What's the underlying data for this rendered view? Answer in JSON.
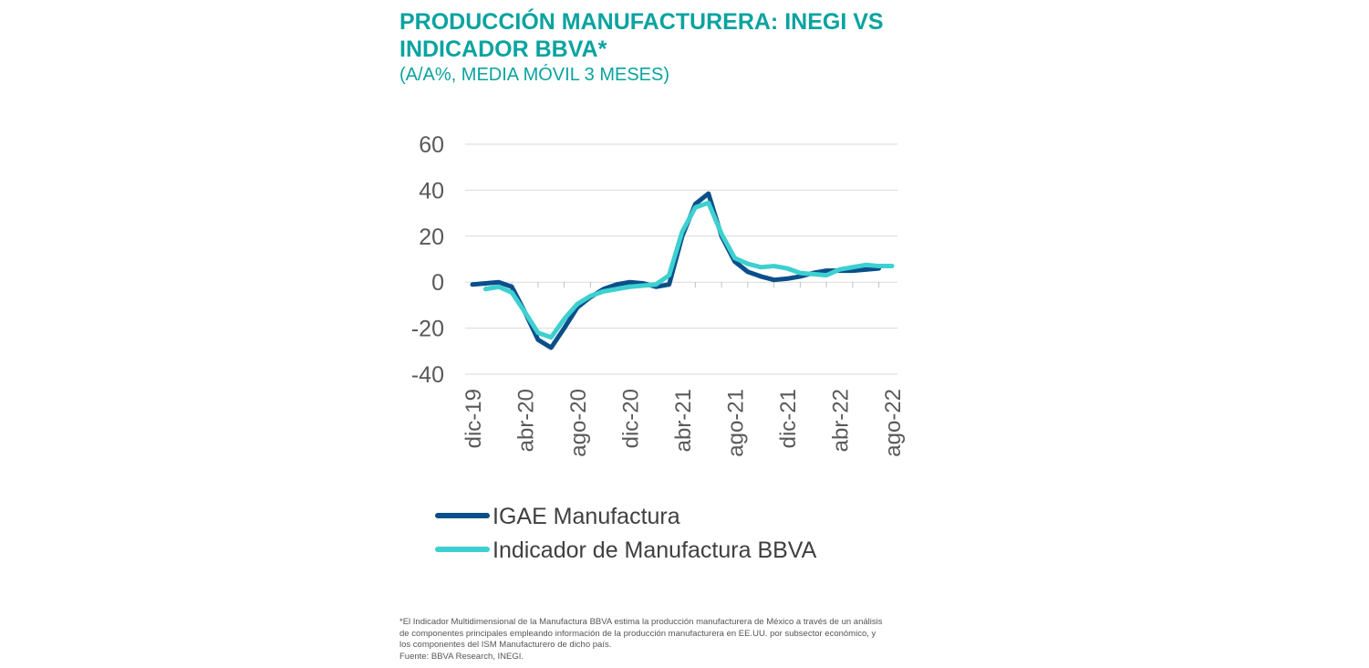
{
  "title": "PRODUCCIÓN MANUFACTURERA: INEGI VS INDICADOR BBVA*",
  "subtitle": "(A/A%, MEDIA MÓVIL 3 MESES)",
  "colors": {
    "accent": "#0aa3a0",
    "igae": "#0b4f8a",
    "bbva": "#3dd0d0",
    "grid": "#d9d9d9",
    "axis_text": "#595959"
  },
  "chart_data": {
    "type": "line",
    "title": "PRODUCCIÓN MANUFACTURERA: INEGI VS INDICADOR BBVA*",
    "subtitle": "(A/A%, MEDIA MÓVIL 3 MESES)",
    "xlabel": "",
    "ylabel": "",
    "ylim": [
      -40,
      60
    ],
    "yticks": [
      "60",
      "40",
      "20",
      "0",
      "-20",
      "-40"
    ],
    "ytick_values": [
      60,
      40,
      20,
      0,
      -20,
      -40
    ],
    "grid": true,
    "legend_position": "bottom",
    "x": [
      "dic-19",
      "ene-20",
      "feb-20",
      "mar-20",
      "abr-20",
      "may-20",
      "jun-20",
      "jul-20",
      "ago-20",
      "sep-20",
      "oct-20",
      "nov-20",
      "dic-20",
      "ene-21",
      "feb-21",
      "mar-21",
      "abr-21",
      "may-21",
      "jun-21",
      "jul-21",
      "ago-21",
      "sep-21",
      "oct-21",
      "nov-21",
      "dic-21",
      "ene-22",
      "feb-22",
      "mar-22",
      "abr-22",
      "may-22",
      "jun-22",
      "jul-22",
      "ago-22"
    ],
    "xtick_labels": [
      "dic-19",
      "abr-20",
      "ago-20",
      "dic-20",
      "abr-21",
      "ago-21",
      "dic-21",
      "abr-22",
      "ago-22"
    ],
    "series": [
      {
        "name": "IGAE Manufactura",
        "color": "#0b4f8a",
        "values": [
          -1,
          -0.5,
          0,
          -2,
          -13,
          -25,
          -28.5,
          -20,
          -11,
          -6.5,
          -3,
          -1,
          0,
          -0.5,
          -2,
          -1,
          20,
          34,
          38.5,
          20,
          9,
          4.5,
          2.5,
          1,
          1.5,
          2.5,
          4,
          5,
          5,
          5,
          5.5,
          6,
          null
        ]
      },
      {
        "name": "Indicador de Manufactura BBVA",
        "color": "#3dd0d0",
        "values": [
          null,
          -3,
          -2,
          -4.5,
          -13,
          -22,
          -24,
          -16,
          -9.5,
          -6,
          -4,
          -3,
          -2,
          -1.5,
          -1,
          3,
          22,
          32.5,
          34.5,
          21,
          10.5,
          8,
          6.5,
          7,
          6,
          4,
          3.5,
          3,
          5.5,
          6.5,
          7.5,
          7,
          7
        ]
      }
    ]
  },
  "footnote": {
    "lines": [
      "*El Indicador Multidimensional de la Manufactura BBVA estima la producción manufacturera de México a través de un análisis",
      "de componentes principales empleando información de la producción manufacturera en EE.UU. por subsector económico, y",
      "los componentes del ISM Manufacturero de dicho país.",
      "Fuente: BBVA Research, INEGI."
    ]
  }
}
